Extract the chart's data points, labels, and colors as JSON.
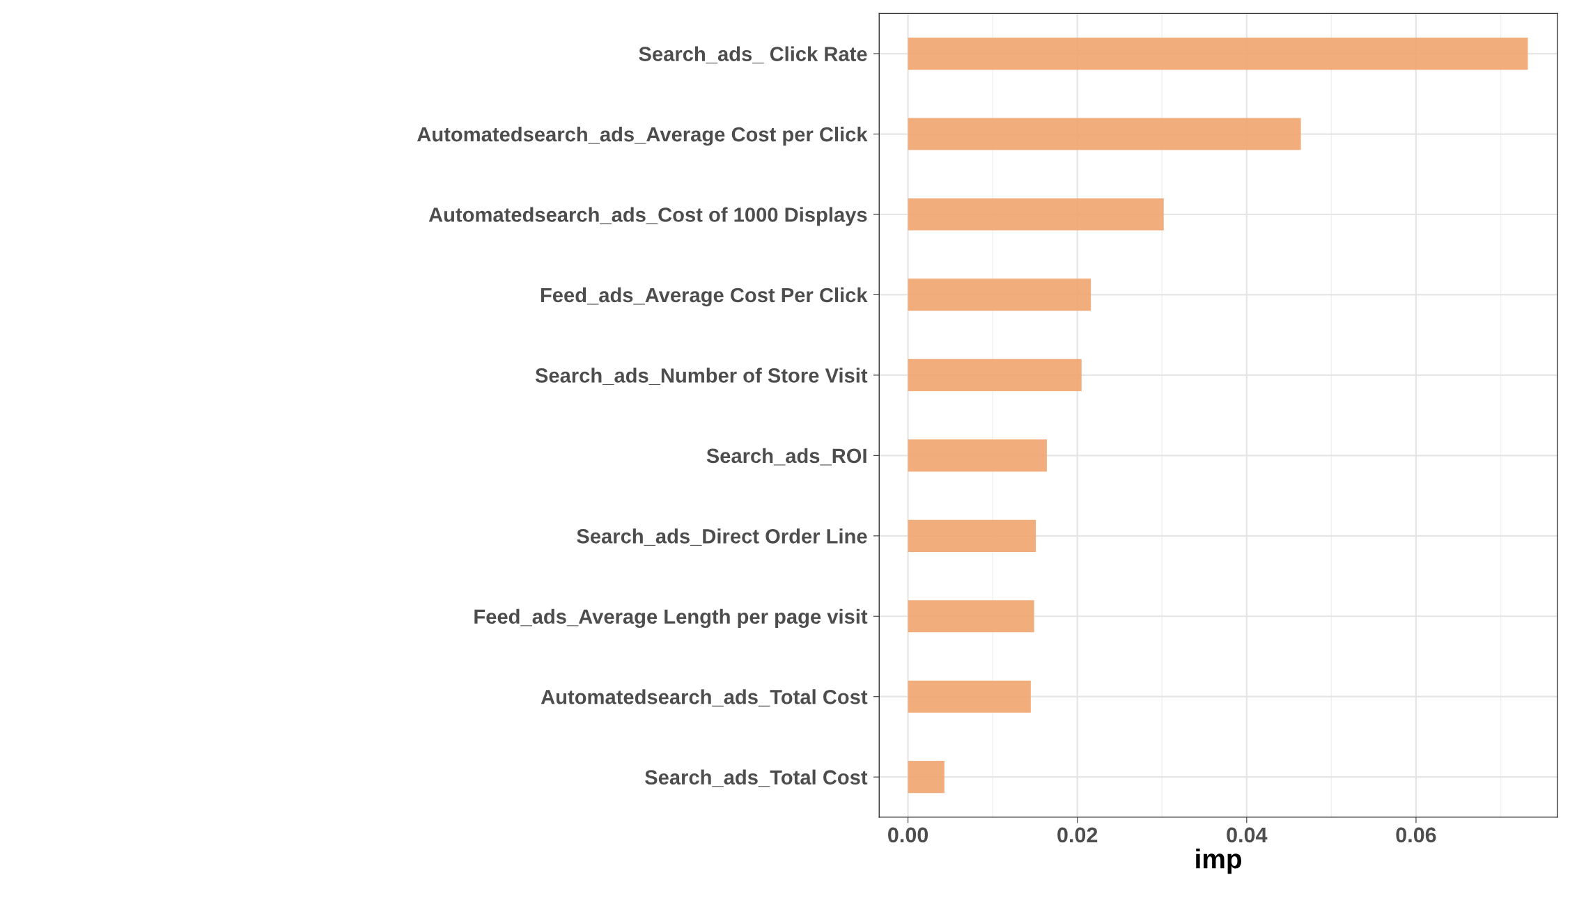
{
  "chart_data": {
    "type": "bar",
    "orientation": "horizontal",
    "xlabel": "imp",
    "categories": [
      "Search_ads_ Click Rate",
      "Automatedsearch_ads_Average Cost per Click",
      "Automatedsearch_ads_Cost of 1000 Displays",
      "Feed_ads_Average Cost Per Click",
      "Search_ads_Number of Store Visit",
      "Search_ads_ROI",
      "Search_ads_Direct Order Line",
      "Feed_ads_Average Length per page visit",
      "Automatedsearch_ads_Total Cost",
      "Search_ads_Total Cost"
    ],
    "values": [
      0.0732,
      0.0464,
      0.0302,
      0.0216,
      0.0205,
      0.0164,
      0.0151,
      0.0149,
      0.0145,
      0.0043
    ],
    "color": "#f0a46e",
    "xlim": [
      -0.0034,
      0.0767
    ],
    "xticks": [
      {
        "value": 0,
        "label": "0.00"
      },
      {
        "value": 0.02,
        "label": "0.02"
      },
      {
        "value": 0.04,
        "label": "0.04"
      },
      {
        "value": 0.06,
        "label": "0.06"
      }
    ],
    "grid": true,
    "legend": false
  }
}
